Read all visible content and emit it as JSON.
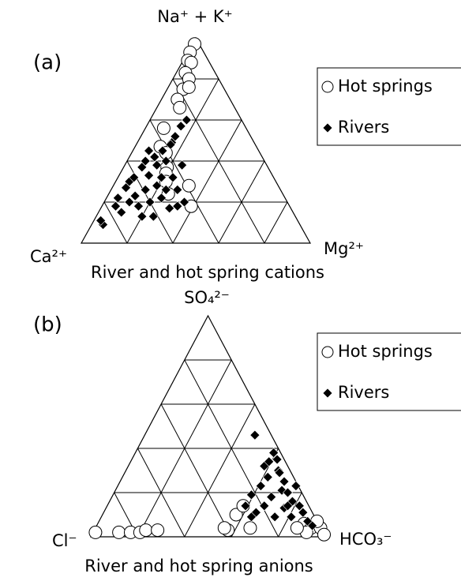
{
  "chart_data": [
    {
      "type": "ternary",
      "panel_label": "(a)",
      "title": "River and hot spring cations",
      "vertices": {
        "top": "Na⁺ + K⁺",
        "left": "Ca²⁺",
        "right": "Mg²⁺"
      },
      "ticks": [
        20,
        40,
        60,
        80
      ],
      "grid": true,
      "legend": "upper right",
      "series": [
        {
          "name": "Hot springs",
          "marker": "circle",
          "color": "#ffffff",
          "values": [
            [
              97,
              2,
              1
            ],
            [
              93,
              6,
              1
            ],
            [
              89,
              9,
              2
            ],
            [
              88,
              8,
              4
            ],
            [
              83,
              13,
              4
            ],
            [
              80,
              13,
              7
            ],
            [
              75,
              18,
              7
            ],
            [
              76,
              15,
              9
            ],
            [
              70,
              23,
              7
            ],
            [
              66,
              24,
              10
            ],
            [
              56,
              36,
              8
            ],
            [
              47,
              42,
              11
            ],
            [
              44,
              41,
              15
            ],
            [
              37,
              44,
              19
            ],
            [
              34,
              46,
              20
            ],
            [
              28,
              39,
              33
            ],
            [
              18,
              43,
              39
            ],
            [
              24,
              50,
              26
            ],
            [
              30,
              48,
              22
            ]
          ]
        },
        {
          "name": "Rivers",
          "marker": "diamond",
          "color": "#000000",
          "values": [
            [
              60,
              24,
              16
            ],
            [
              57,
              28,
              15
            ],
            [
              52,
              33,
              15
            ],
            [
              49,
              36,
              15
            ],
            [
              45,
              42,
              13
            ],
            [
              42,
              47,
              11
            ],
            [
              40,
              52,
              8
            ],
            [
              37,
              55,
              8
            ],
            [
              33,
              54,
              13
            ],
            [
              30,
              64,
              6
            ],
            [
              27,
              67,
              6
            ],
            [
              22,
              73,
              5
            ],
            [
              18,
              76,
              6
            ],
            [
              9,
              86,
              5
            ],
            [
              11,
              86,
              3
            ],
            [
              38,
              48,
              14
            ],
            [
              40,
              43,
              17
            ],
            [
              32,
              44,
              24
            ],
            [
              26,
              45,
              29
            ],
            [
              22,
              54,
              24
            ],
            [
              20,
              60,
              20
            ],
            [
              18,
              66,
              16
            ],
            [
              17,
              53,
              30
            ],
            [
              28,
              53,
              19
            ],
            [
              26,
              59,
              15
            ],
            [
              23,
              65,
              12
            ],
            [
              38,
              37,
              25
            ],
            [
              13,
              62,
              25
            ],
            [
              13,
              67,
              20
            ],
            [
              20,
              69,
              11
            ],
            [
              48,
              37,
              15
            ],
            [
              45,
              48,
              7
            ],
            [
              32,
              49,
              19
            ],
            [
              18,
              49,
              33
            ],
            [
              20,
              45,
              35
            ],
            [
              15,
              75,
              10
            ],
            [
              26,
              50,
              24
            ],
            [
              32,
              61,
              7
            ]
          ]
        }
      ]
    },
    {
      "type": "ternary",
      "panel_label": "(b)",
      "title": "River and hot spring anions",
      "vertices": {
        "top": "SO₄²⁻",
        "left": "Cl⁻",
        "right": "HCO₃⁻"
      },
      "ticks": [
        20,
        40,
        60,
        80
      ],
      "grid": true,
      "legend": "upper right",
      "series": [
        {
          "name": "Hot springs",
          "marker": "circle",
          "color": "#ffffff",
          "values": [
            [
              2,
              97,
              1
            ],
            [
              2,
              87,
              11
            ],
            [
              2,
              82,
              16
            ],
            [
              2,
              78,
              20
            ],
            [
              3,
              75,
              22
            ],
            [
              3,
              70,
              27
            ],
            [
              3,
              40,
              57
            ],
            [
              4,
              41,
              55
            ],
            [
              10,
              33,
              57
            ],
            [
              14,
              28,
              58
            ],
            [
              4,
              30,
              66
            ],
            [
              6,
              6,
              88
            ],
            [
              4,
              4,
              92
            ],
            [
              4,
              0,
              96
            ],
            [
              1,
              0,
              99
            ],
            [
              2,
              7,
              91
            ],
            [
              4,
              10,
              86
            ],
            [
              7,
              0,
              93
            ]
          ]
        },
        {
          "name": "Rivers",
          "marker": "diamond",
          "color": "#000000",
          "values": [
            [
              46,
              7,
              47
            ],
            [
              38,
              3,
              59
            ],
            [
              35,
              3,
              62
            ],
            [
              32,
              10,
              58
            ],
            [
              30,
              5,
              65
            ],
            [
              27,
              11,
              62
            ],
            [
              25,
              5,
              70
            ],
            [
              23,
              16,
              61
            ],
            [
              21,
              8,
              71
            ],
            [
              20,
              6,
              74
            ],
            [
              19,
              22,
              59
            ],
            [
              18,
              14,
              68
            ],
            [
              16,
              6,
              78
            ],
            [
              14,
              4,
              82
            ],
            [
              14,
              19,
              67
            ],
            [
              13,
              11,
              76
            ],
            [
              11,
              4,
              85
            ],
            [
              11,
              24,
              65
            ],
            [
              9,
              17,
              74
            ],
            [
              7,
              4,
              89
            ],
            [
              9,
              10,
              81
            ],
            [
              5,
              3,
              92
            ],
            [
              29,
              5,
              66
            ],
            [
              34,
              7,
              59
            ],
            [
              14,
              9,
              77
            ],
            [
              23,
              1,
              76
            ],
            [
              14,
              27,
              59
            ],
            [
              9,
              27,
              64
            ]
          ]
        }
      ]
    }
  ]
}
